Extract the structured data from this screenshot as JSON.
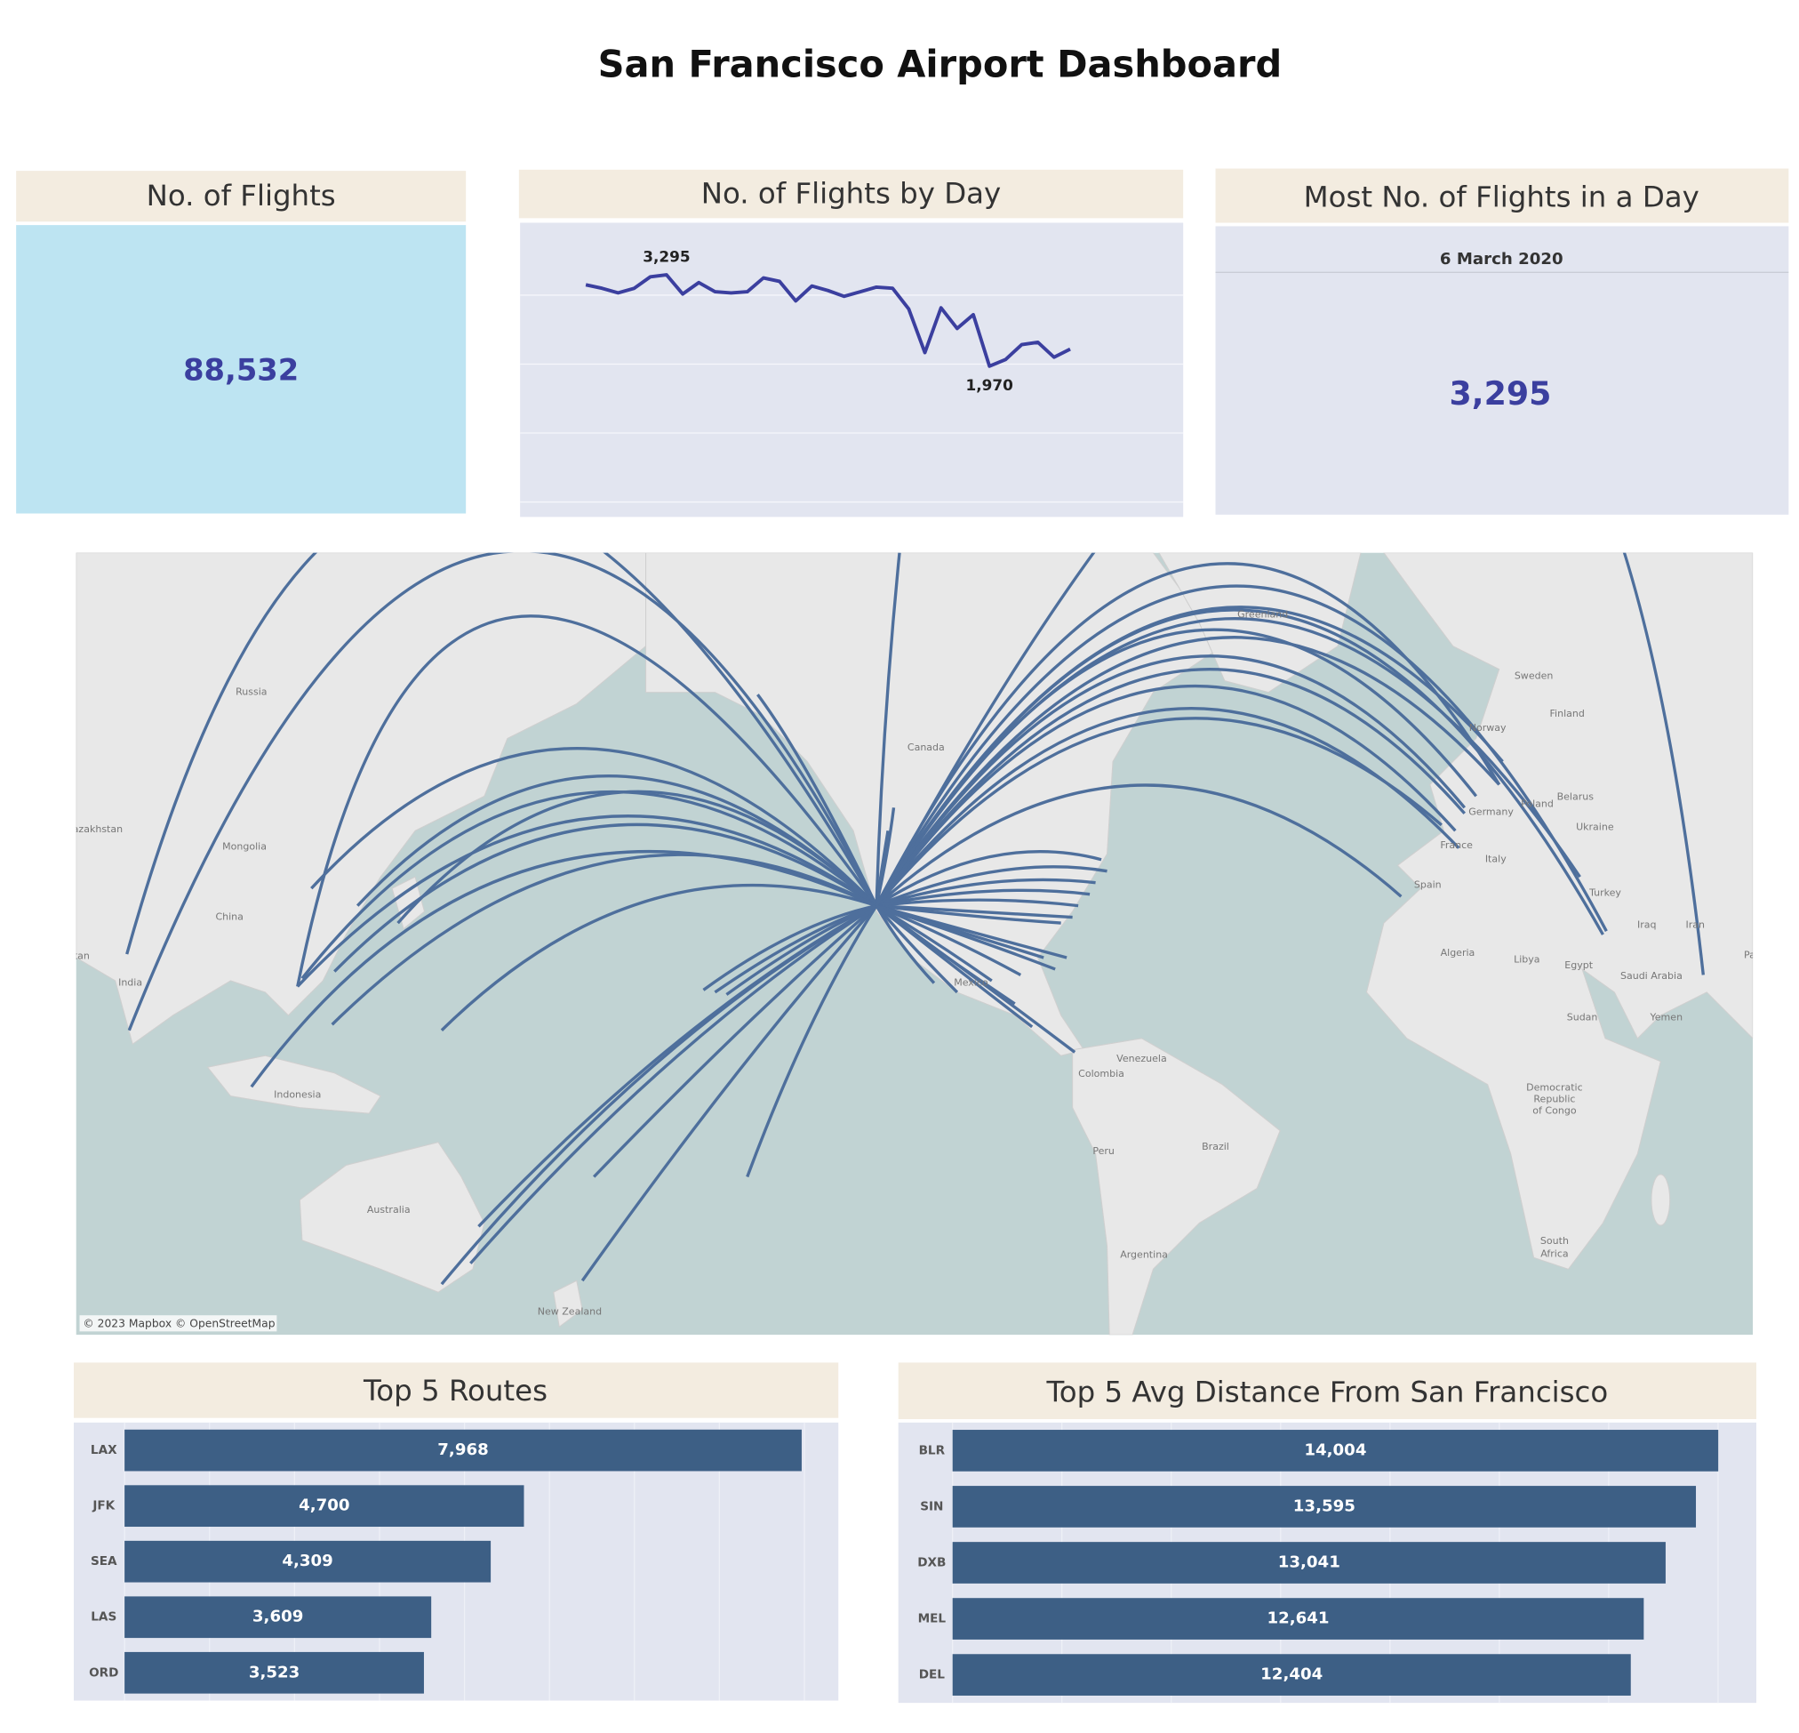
{
  "title": "San Francisco Airport Dashboard",
  "cards": [
    {
      "title": "No. of Flights",
      "value": "88,532"
    },
    {
      "title": "Most No. of Flights in a Day",
      "date": "6 March 2020",
      "value": "3,295"
    }
  ],
  "chart_data": [
    {
      "type": "line",
      "title": "No. of Flights by Day",
      "categories": [
        null,
        null,
        null,
        null,
        null,
        null,
        null,
        null,
        null,
        null,
        null,
        null,
        null,
        null,
        null,
        null,
        null,
        null,
        null,
        null,
        null,
        null,
        null,
        null,
        null,
        null,
        null,
        null,
        null,
        null,
        null
      ],
      "values": [
        3150,
        3100,
        3033,
        3100,
        3267,
        3295,
        3017,
        3183,
        3050,
        3033,
        3050,
        3250,
        3200,
        2917,
        3133,
        3067,
        2983,
        3050,
        3117,
        3100,
        2800,
        2167,
        2817,
        2517,
        2717,
        1970,
        2067,
        2283,
        2317,
        2100,
        2217
      ],
      "value_labels": [
        null,
        null,
        null,
        null,
        null,
        "3,295",
        null,
        null,
        null,
        null,
        null,
        null,
        null,
        null,
        null,
        null,
        null,
        null,
        null,
        null,
        null,
        null,
        null,
        null,
        null,
        "1,970",
        null,
        null,
        null,
        null,
        null
      ],
      "color": "#3b3f9f",
      "ylim": [
        -200,
        4000
      ],
      "yticks": [
        0,
        1000,
        2000,
        3000
      ],
      "grid": true
    },
    {
      "type": "bar",
      "orientation": "horizontal",
      "title": "Top 5 Routes",
      "categories": [
        "LAX",
        "JFK",
        "SEA",
        "LAS",
        "ORD"
      ],
      "values": [
        7968,
        4700,
        4309,
        3609,
        3523
      ],
      "value_labels": [
        "7,968",
        "4,700",
        "4,309",
        "3,609",
        "3,523"
      ],
      "color": "#3d5f85",
      "xlim": [
        0,
        8400
      ],
      "xticks": [
        0,
        1000,
        2000,
        3000,
        4000,
        5000,
        6000,
        7000,
        8000
      ],
      "grid": true
    },
    {
      "type": "bar",
      "orientation": "horizontal",
      "title": "Top 5 Avg Distance From San Francisco",
      "categories": [
        "BLR",
        "SIN",
        "DXB",
        "MEL",
        "DEL"
      ],
      "values": [
        14004,
        13595,
        13041,
        12641,
        12404
      ],
      "value_labels": [
        "14,004",
        "13,595",
        "13,041",
        "12,641",
        "12,404"
      ],
      "color": "#3d5f85",
      "xlim": [
        0,
        14700
      ],
      "xticks": [
        0,
        2000,
        4000,
        6000,
        8000,
        10000,
        12000,
        14000
      ],
      "grid": true
    }
  ],
  "map": {
    "attribution": "© 2023 Mapbox © OpenStreetMap",
    "labels": [
      "Russia",
      "Kazakhstan",
      "Mongolia",
      "China",
      "India",
      "Pakistan",
      "Indonesia",
      "Australia",
      "New Zealand",
      "Canada",
      "Greenland",
      "Sweden",
      "Finland",
      "Norway",
      "Poland",
      "Belarus",
      "Germany",
      "Ukraine",
      "France",
      "Italy",
      "Spain",
      "Turkey",
      "Iraq",
      "Iran",
      "Pakistan",
      "Algeria",
      "Libya",
      "Egypt",
      "Saudi Arabia",
      "Yemen",
      "Sudan",
      "Democratic",
      "Republic",
      "of Congo",
      "South",
      "Africa",
      "Mexico",
      "Venezuela",
      "Colombia",
      "Peru",
      "Brazil",
      "Argentina"
    ]
  }
}
